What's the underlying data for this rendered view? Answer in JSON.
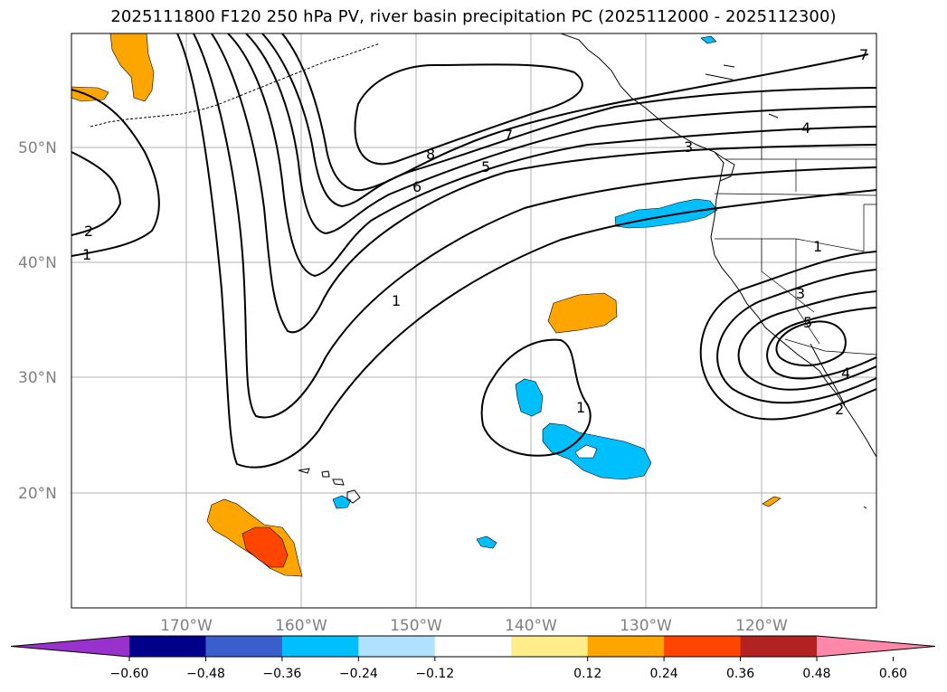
{
  "title": "2025111800 F120 250 hPa PV, river basin precipitation PC (2025112000 - 2025112300)",
  "map": {
    "lat_labels": [
      "50°N",
      "40°N",
      "30°N",
      "20°N"
    ],
    "lon_labels": [
      "170°W",
      "160°W",
      "150°W",
      "140°W",
      "130°W",
      "120°W"
    ],
    "contour_labels": [
      "7",
      "2",
      "1",
      "8",
      "7",
      "6",
      "5",
      "4",
      "3",
      "1",
      "1",
      "3",
      "5",
      "4",
      "2",
      "1"
    ]
  },
  "chart_data": {
    "type": "map",
    "title": "2025111800 F120 250 hPa PV, river basin precipitation PC (2025112000 - 2025112300)",
    "field_contours": "250 hPa PV",
    "field_shaded": "river basin precipitation PC",
    "lon_range": [
      -180,
      -110
    ],
    "lat_range": [
      10,
      60
    ],
    "colorbar": {
      "ticks": [
        "−0.60",
        "−0.48",
        "−0.36",
        "−0.24",
        "−0.12",
        "0.12",
        "0.24",
        "0.36",
        "0.48",
        "0.60"
      ],
      "bounds": [
        -0.6,
        -0.48,
        -0.36,
        -0.24,
        -0.12,
        0.12,
        0.24,
        0.36,
        0.48,
        0.6
      ],
      "colors": [
        "#9932cc",
        "#00008b",
        "#3a5fcd",
        "#00bfff",
        "#b0e2ff",
        "#ffffff",
        "#ffec8b",
        "#ffa500",
        "#ff4500",
        "#b22222",
        "#ff88aa"
      ],
      "extend": "both"
    }
  }
}
